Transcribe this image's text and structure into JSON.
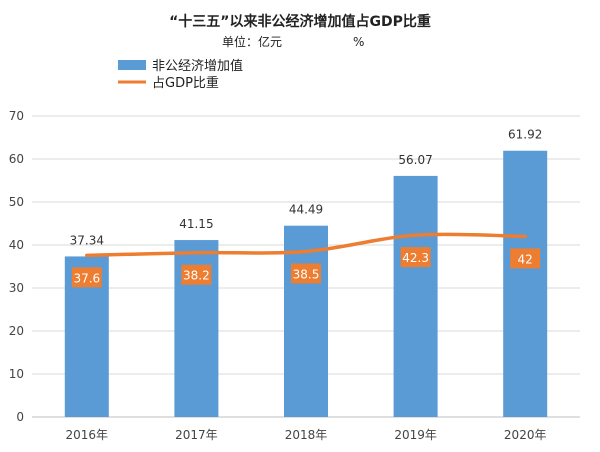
{
  "chart_data": {
    "type": "bar",
    "title": "“十三五”以来非公经济增加值占GDP比重",
    "subtitle_left": "单位：亿元",
    "subtitle_right": "%",
    "categories": [
      "2016年",
      "2017年",
      "2018年",
      "2019年",
      "2020年"
    ],
    "series": [
      {
        "name": "非公经济增加值",
        "type": "bar",
        "values": [
          37.34,
          41.15,
          44.49,
          56.07,
          61.92
        ],
        "color": "#5b9bd5"
      },
      {
        "name": "占GDP比重",
        "type": "line",
        "values": [
          37.6,
          38.2,
          38.5,
          42.3,
          42
        ],
        "color": "#ed7d31"
      }
    ],
    "ylim": [
      0,
      70
    ],
    "yticks": [
      0,
      10,
      20,
      30,
      40,
      50,
      60,
      70
    ],
    "grid": true,
    "legend_position": "top-left"
  }
}
